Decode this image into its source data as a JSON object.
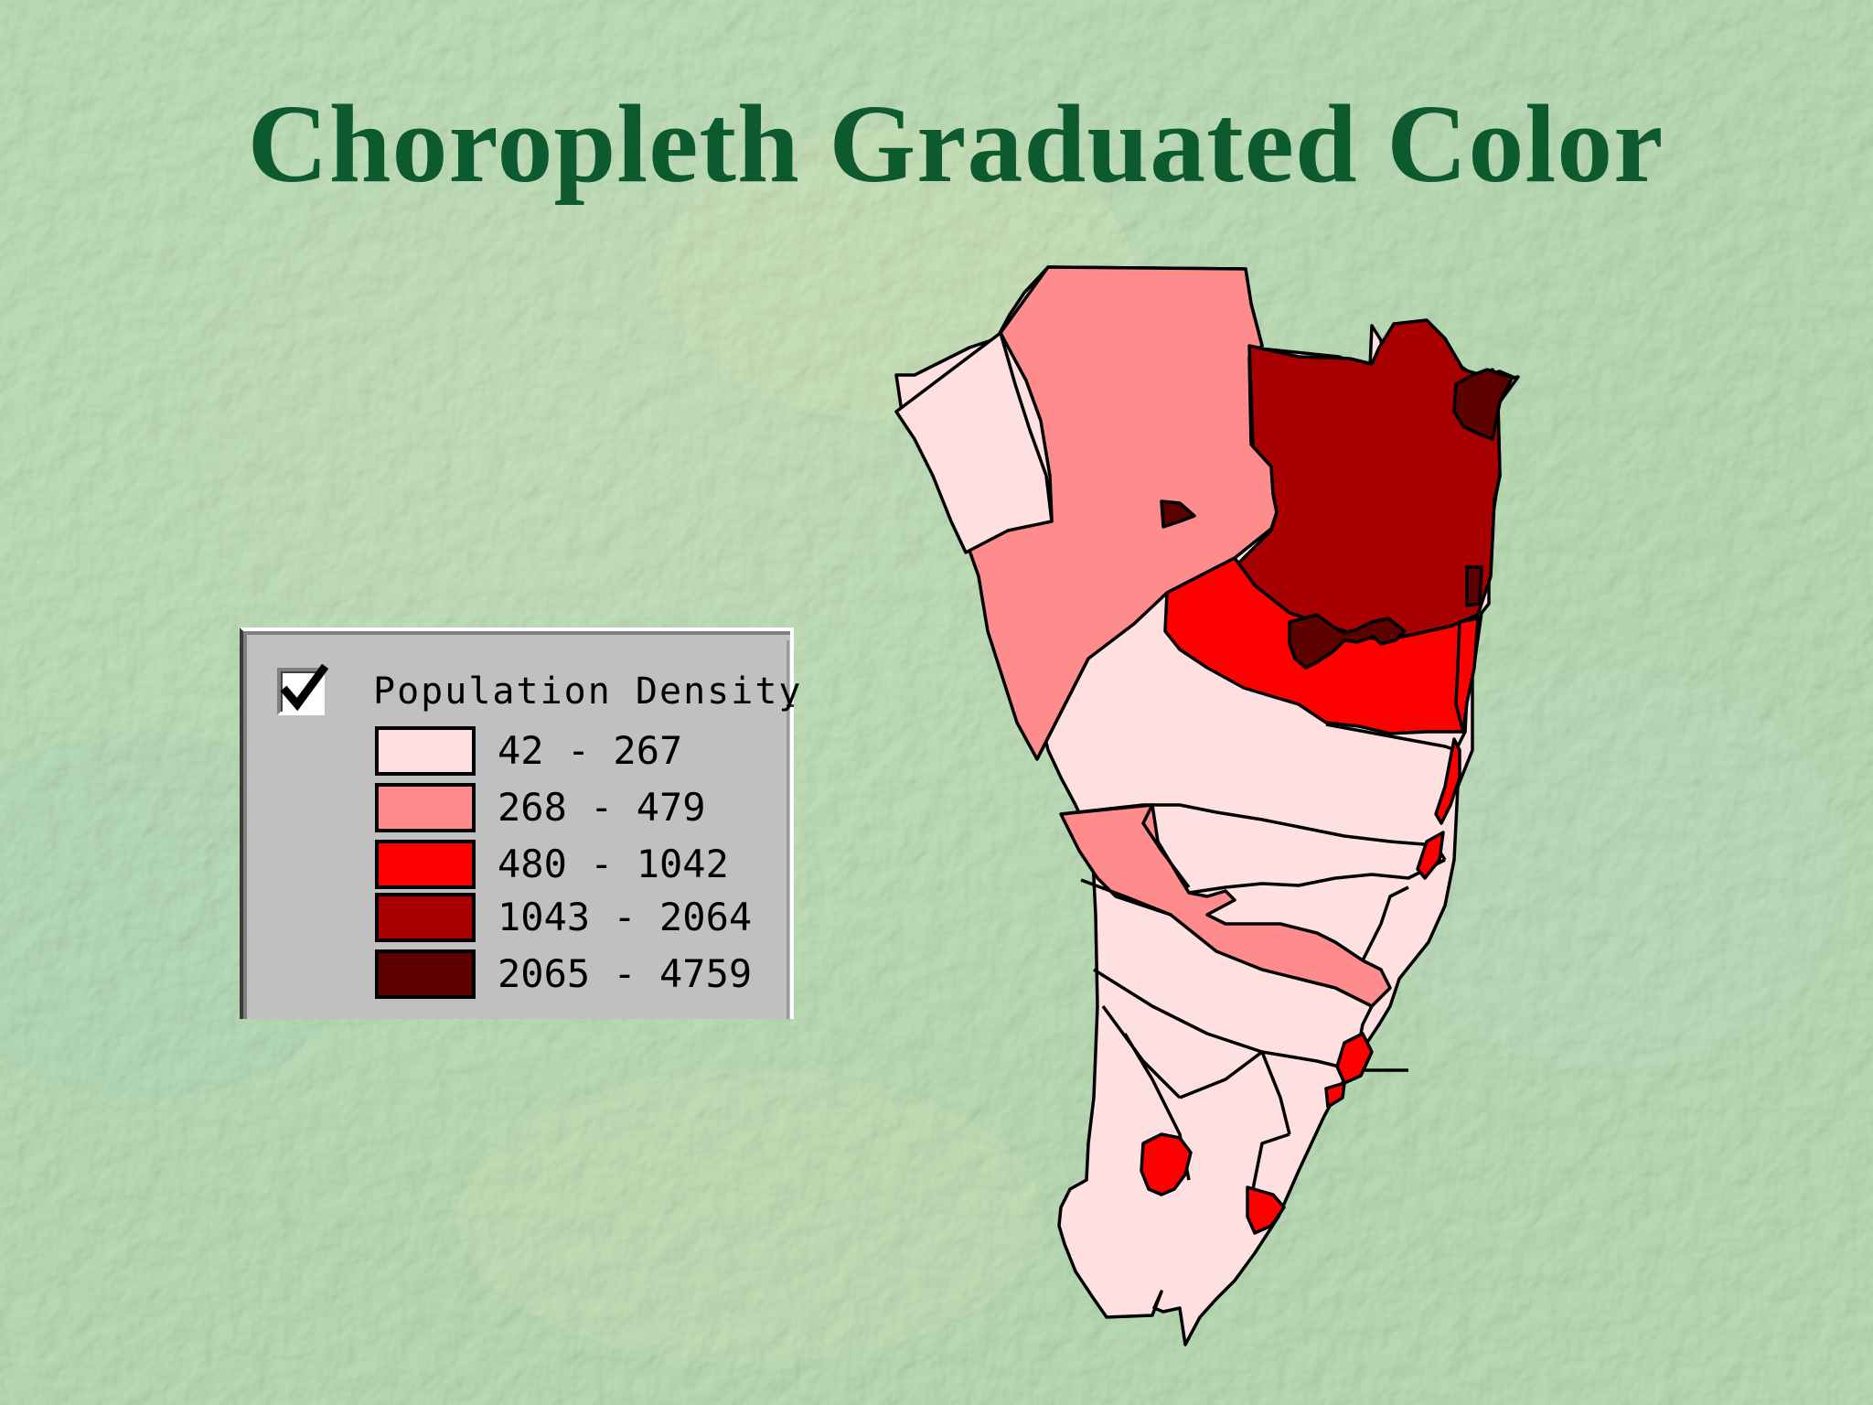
{
  "slide": {
    "title": "Choropleth Graduated Color"
  },
  "legend": {
    "checked": true,
    "heading": "Population Density",
    "classes": [
      {
        "label": "42 - 267",
        "color": "#ffe0e0"
      },
      {
        "label": "268 - 479",
        "color": "#ff8c8c"
      },
      {
        "label": "480 - 1042",
        "color": "#ff0000"
      },
      {
        "label": "1043 - 2064",
        "color": "#a80000"
      },
      {
        "label": "2065 - 4759",
        "color": "#5c0000"
      }
    ]
  },
  "icons": {
    "legend_checkbox": "check-icon"
  }
}
